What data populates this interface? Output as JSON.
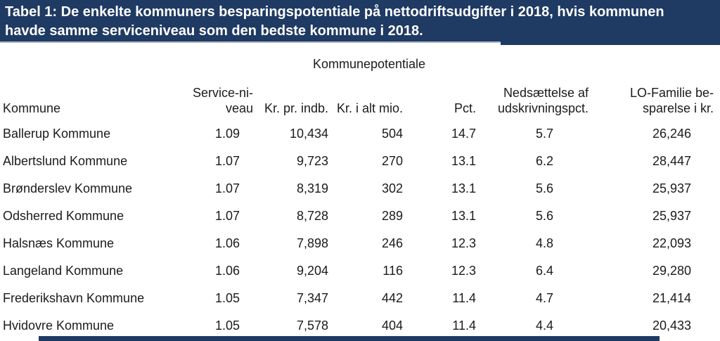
{
  "document": {
    "title_lines": [
      "Tabel 1: De enkelte kommuners besparingspotentiale på nettodriftsudgifter i 2018, hvis kommunen",
      "havde samme serviceniveau som den bedste kommune i 2018."
    ],
    "group_header": "Kommunepotentiale"
  },
  "table": {
    "columns": [
      {
        "id": "kommune",
        "lines": [
          "Kommune"
        ]
      },
      {
        "id": "serviceniveau",
        "lines": [
          "Service-ni-",
          "veau"
        ]
      },
      {
        "id": "kr-pr-indb",
        "lines": [
          "Kr. pr. indb."
        ]
      },
      {
        "id": "kr-i-alt-mio",
        "lines": [
          "Kr. i alt mio."
        ]
      },
      {
        "id": "pct",
        "lines": [
          "Pct."
        ]
      },
      {
        "id": "nedsaettelse",
        "lines": [
          "Nedsættelse af",
          "udskrivningspct."
        ]
      },
      {
        "id": "lo-familie",
        "lines": [
          "LO-Familie be-",
          "sparelse i kr."
        ]
      }
    ],
    "rows": [
      [
        "Ballerup Kommune",
        "1.09",
        "10,434",
        "504",
        "14.7",
        "5.7",
        "26,246"
      ],
      [
        "Albertslund Kommune",
        "1.07",
        "9,723",
        "270",
        "13.1",
        "6.2",
        "28,447"
      ],
      [
        "Brønderslev Kommune",
        "1.07",
        "8,319",
        "302",
        "13.1",
        "5.6",
        "25,937"
      ],
      [
        "Odsherred Kommune",
        "1.07",
        "8,728",
        "289",
        "13.1",
        "5.6",
        "25,937"
      ],
      [
        "Halsnæs Kommune",
        "1.06",
        "7,898",
        "246",
        "12.3",
        "4.8",
        "22,093"
      ],
      [
        "Langeland Kommune",
        "1.06",
        "9,204",
        "116",
        "12.3",
        "6.4",
        "29,280"
      ],
      [
        "Frederikshavn Kommune",
        "1.05",
        "7,347",
        "442",
        "11.4",
        "4.7",
        "21,414"
      ],
      [
        "Hvidovre Kommune",
        "1.05",
        "7,578",
        "404",
        "11.4",
        "4.4",
        "20,433"
      ]
    ]
  },
  "colors": {
    "header_bg": "#1f3a63",
    "header_text": "#ffffff",
    "body_text": "#1b1b1b",
    "divider_line": "#aeb9c9"
  }
}
